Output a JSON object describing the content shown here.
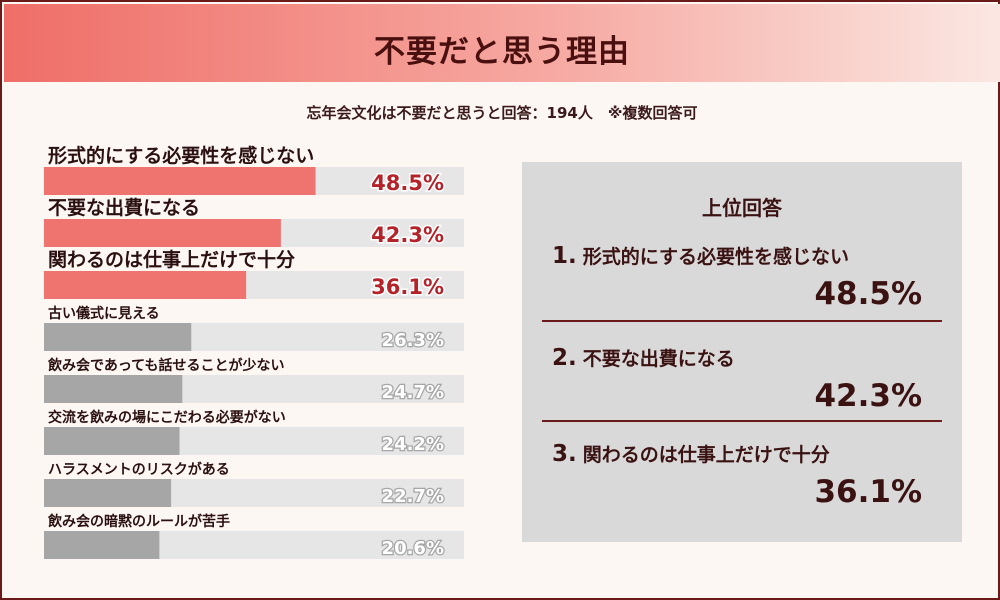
{
  "title": "不要だと思う理由",
  "subtitle": "忘年会文化は不要だと思うと回答：194人　※複数回答可",
  "chart_data": {
    "type": "bar",
    "orientation": "horizontal",
    "categories": [
      "形式的にする必要性を感じない",
      "不要な出費になる",
      "関わるのは仕事上だけで十分",
      "古い儀式に見える",
      "飲み会であっても話せることが少ない",
      "交流を飲みの場にこだわる必要がない",
      "ハラスメントのリスクがある",
      "飲み会の暗黙のルールが苦手"
    ],
    "values": [
      48.5,
      42.3,
      36.1,
      26.3,
      24.7,
      24.2,
      22.7,
      20.6
    ],
    "value_labels": [
      "48.5%",
      "42.3%",
      "36.1%",
      "26.3%",
      "24.7%",
      "24.2%",
      "22.7%",
      "20.6%"
    ],
    "xlim": [
      0,
      75
    ],
    "highlight_top": 3,
    "colors": {
      "highlight": "#ef7470",
      "normal": "#a6a6a6",
      "track": "#e6e6e6",
      "highlight_label": "#b5232a",
      "normal_label": "#a6a6a6"
    }
  },
  "panel": {
    "title": "上位回答",
    "ranks": [
      {
        "num": "1.",
        "label": "形式的にする必要性を感じない",
        "value": "48.5%"
      },
      {
        "num": "2.",
        "label": "不要な出費になる",
        "value": "42.3%"
      },
      {
        "num": "3.",
        "label": "関わるのは仕事上だけで十分",
        "value": "36.1%"
      }
    ]
  }
}
